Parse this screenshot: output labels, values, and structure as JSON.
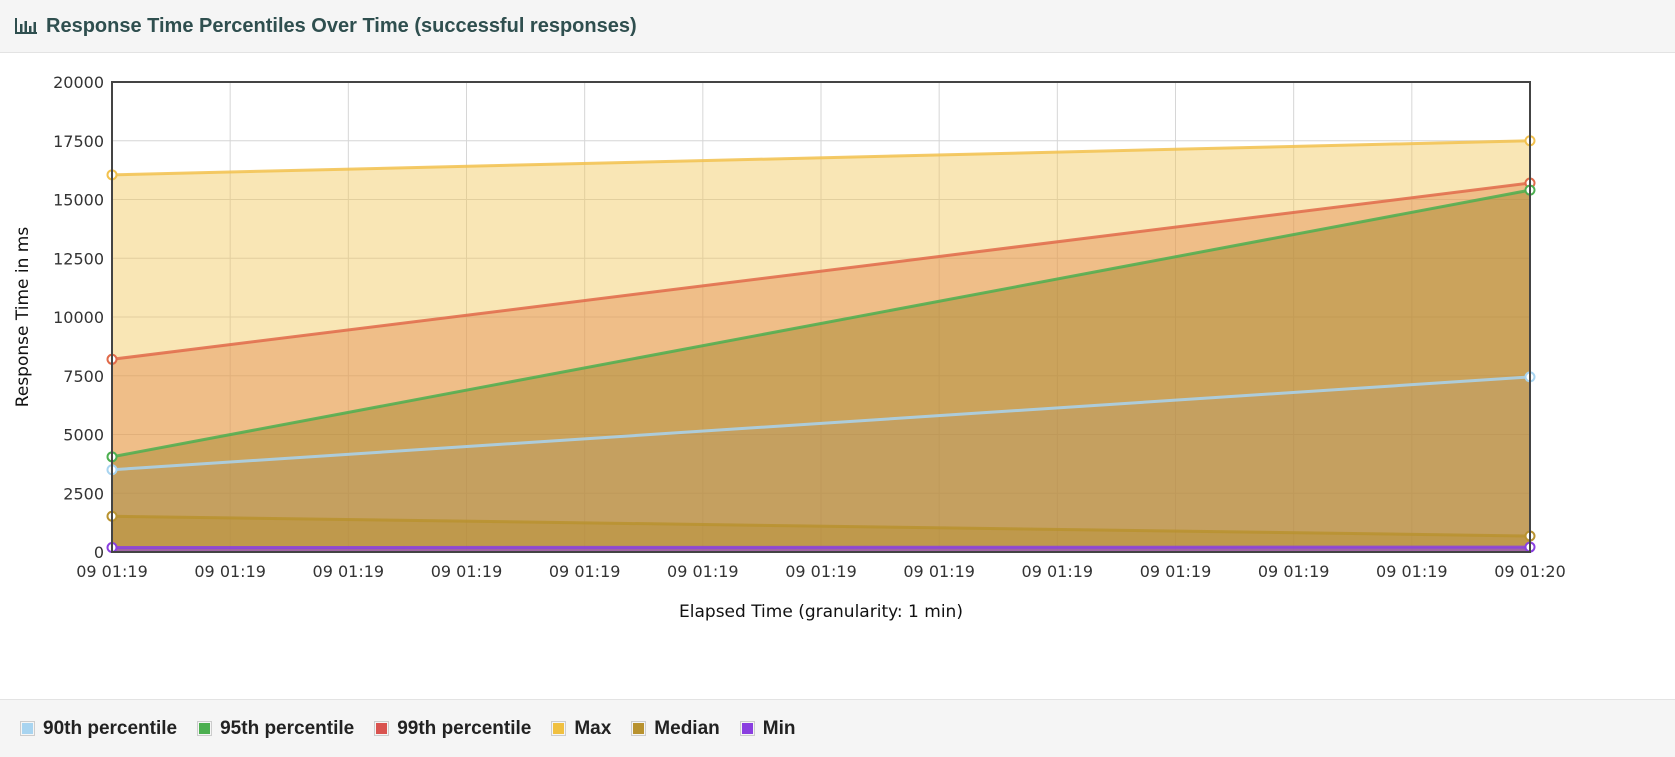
{
  "header": {
    "title": "Response Time Percentiles Over Time (successful responses)",
    "icon": "bar-chart-icon"
  },
  "chart_data": {
    "type": "area",
    "title": "Response Time Percentiles Over Time (successful responses)",
    "xlabel": "Elapsed Time (granularity: 1 min)",
    "ylabel": "Response Time in ms",
    "ylim": [
      0,
      20000
    ],
    "yticks": [
      "20000",
      "17500",
      "15000",
      "12500",
      "10000",
      "7500",
      "5000",
      "2500",
      "0"
    ],
    "xticks": [
      "09 01:19",
      "09 01:19",
      "09 01:19",
      "09 01:19",
      "09 01:19",
      "09 01:19",
      "09 01:19",
      "09 01:19",
      "09 01:19",
      "09 01:19",
      "09 01:19",
      "09 01:19",
      "09 01:20"
    ],
    "x": [
      "09 01:19",
      "09 01:20"
    ],
    "grid": true,
    "legend_position": "bottom",
    "series": [
      {
        "name": "Max",
        "values": [
          16050,
          17500
        ],
        "color": "#f2c14e"
      },
      {
        "name": "99th percentile",
        "values": [
          8200,
          15700
        ],
        "color": "#e06a4a"
      },
      {
        "name": "95th percentile",
        "values": [
          4050,
          15400
        ],
        "color": "#4caf50"
      },
      {
        "name": "90th percentile",
        "values": [
          3500,
          7450
        ],
        "color": "#a8d4f0"
      },
      {
        "name": "Median",
        "values": [
          1520,
          680
        ],
        "color": "#b8922f"
      },
      {
        "name": "Min",
        "values": [
          190,
          210
        ],
        "color": "#8a3fe0"
      }
    ]
  },
  "legend": {
    "items": [
      {
        "label": "90th percentile",
        "color": "#a8d4f0"
      },
      {
        "label": "95th percentile",
        "color": "#4caf50"
      },
      {
        "label": "99th percentile",
        "color": "#d9534f"
      },
      {
        "label": "Max",
        "color": "#f0c040"
      },
      {
        "label": "Median",
        "color": "#b8922f"
      },
      {
        "label": "Min",
        "color": "#8a3fe0"
      }
    ]
  }
}
